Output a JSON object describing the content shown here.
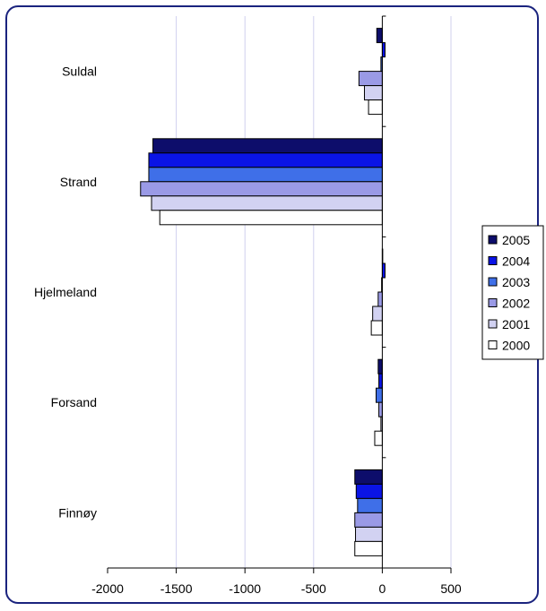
{
  "chart_data": {
    "type": "bar",
    "orientation": "horizontal",
    "categories": [
      "Suldal",
      "Strand",
      "Hjelmeland",
      "Forsand",
      "Finnøy"
    ],
    "series": [
      {
        "name": "2005",
        "color": "#0d0d6b",
        "values": [
          -40,
          -1670,
          0,
          -30,
          -200
        ]
      },
      {
        "name": "2004",
        "color": "#0a14e6",
        "values": [
          20,
          -1700,
          20,
          -25,
          -190
        ]
      },
      {
        "name": "2003",
        "color": "#3f6fe8",
        "values": [
          -10,
          -1700,
          -5,
          -45,
          -180
        ]
      },
      {
        "name": "2002",
        "color": "#9a9ae6",
        "values": [
          -170,
          -1760,
          -30,
          -25,
          -200
        ]
      },
      {
        "name": "2001",
        "color": "#d2d2f2",
        "values": [
          -130,
          -1680,
          -70,
          -10,
          -195
        ]
      },
      {
        "name": "2000",
        "color": "#ffffff",
        "values": [
          -100,
          -1620,
          -80,
          -55,
          -200
        ]
      }
    ],
    "xlim": [
      -2000,
      500
    ],
    "xticks": [
      "-2000",
      "-1500",
      "-1000",
      "-500",
      "0",
      "500"
    ],
    "grid": "vertical",
    "legend": "right"
  }
}
